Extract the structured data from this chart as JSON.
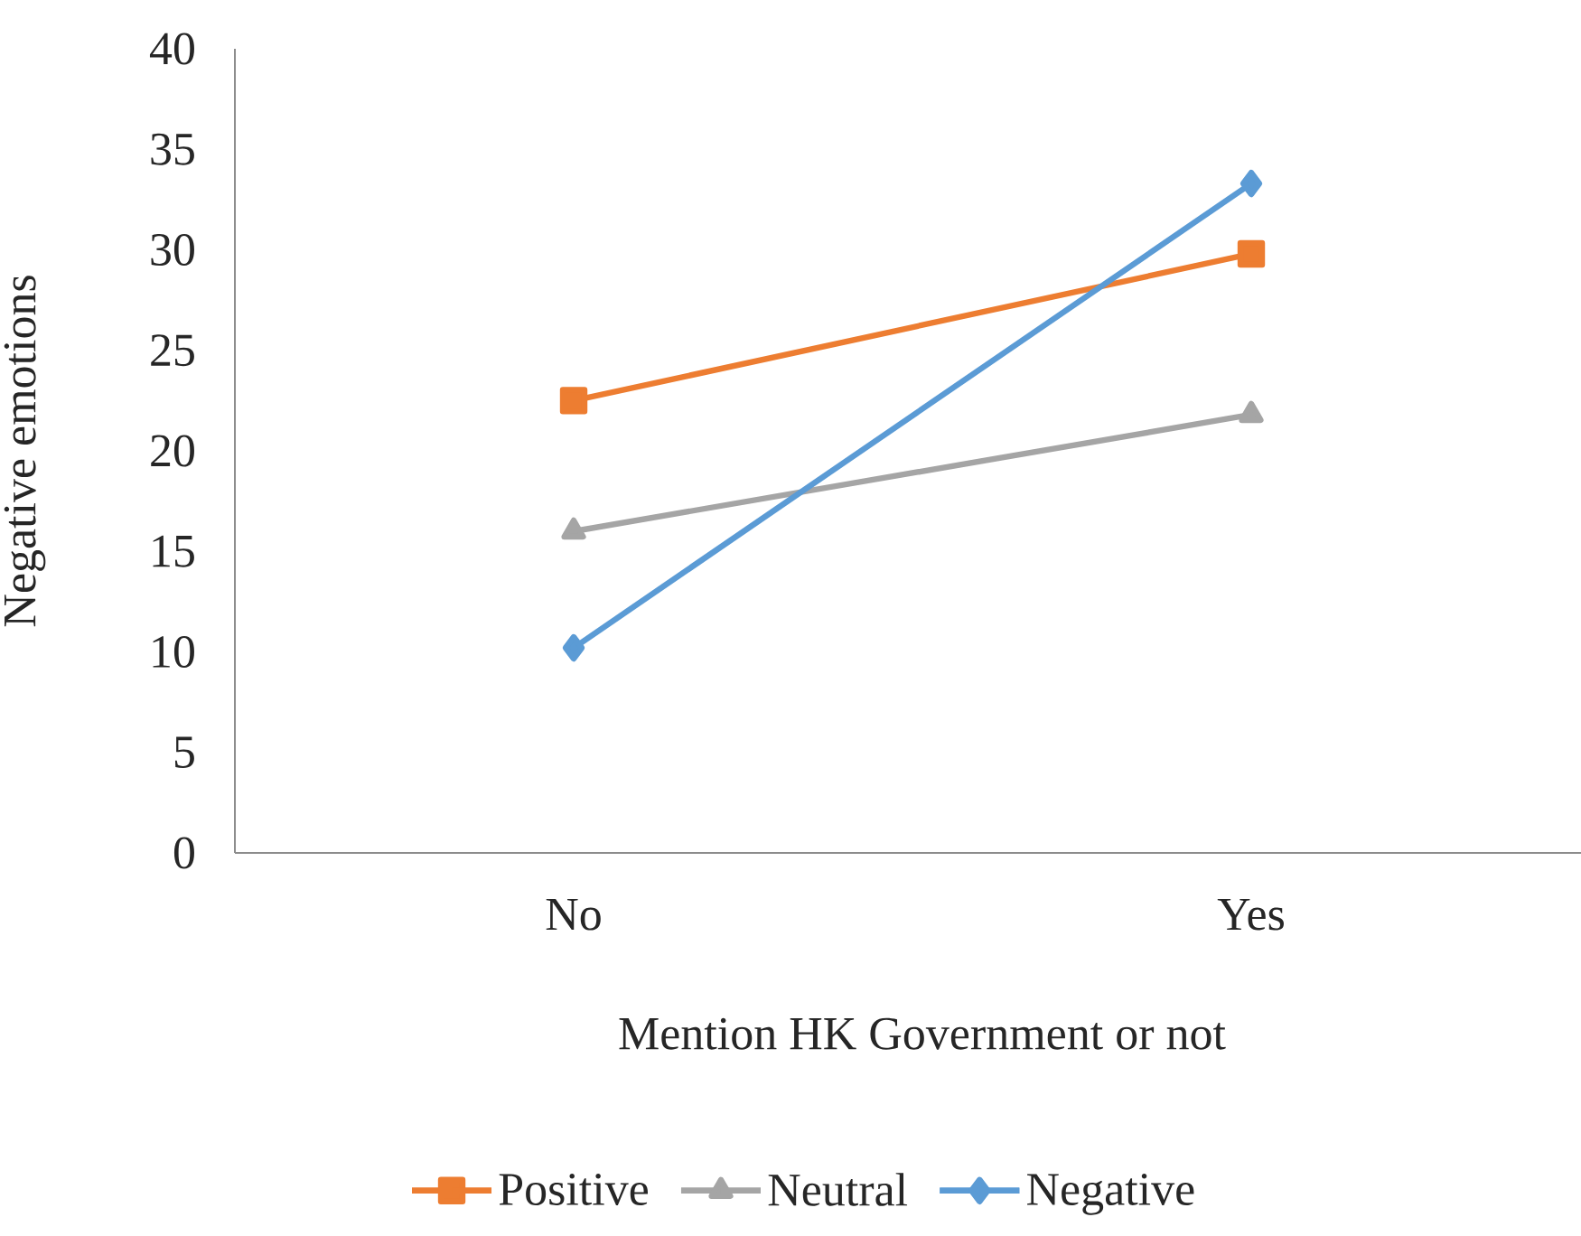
{
  "chart_data": {
    "type": "line",
    "xlabel": "Mention HK Government or not",
    "ylabel": "Negative emotions",
    "categories": [
      "No",
      "Yes"
    ],
    "ylim": [
      0,
      40
    ],
    "yticks": [
      0,
      5,
      10,
      15,
      20,
      25,
      30,
      35,
      40
    ],
    "grid": false,
    "legend": "bottom",
    "series": [
      {
        "name": "Positive",
        "color": "#ed7d31",
        "marker": "square",
        "values": [
          22.5,
          29.8
        ]
      },
      {
        "name": "Neutral",
        "color": "#a5a5a5",
        "marker": "triangle",
        "values": [
          16.0,
          21.8
        ]
      },
      {
        "name": "Negative",
        "color": "#5b9bd5",
        "marker": "diamond",
        "values": [
          10.2,
          33.3
        ]
      }
    ]
  }
}
